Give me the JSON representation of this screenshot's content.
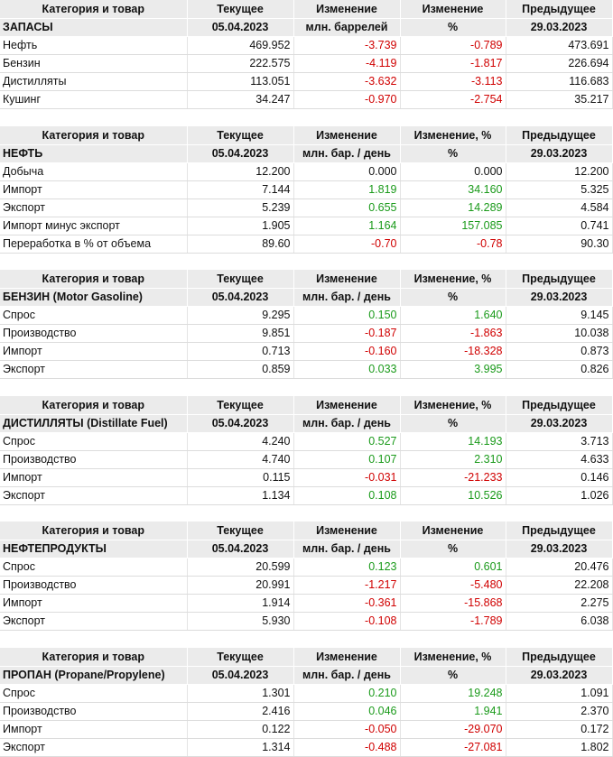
{
  "tables": [
    {
      "header": [
        "Категория и товар",
        "Текущее",
        "Изменение",
        "Изменение",
        "Предыдущее"
      ],
      "subheader": [
        "ЗАПАСЫ",
        "05.04.2023",
        "млн. баррелей",
        "%",
        "29.03.2023"
      ],
      "rows": [
        [
          "Нефть",
          "469.952",
          "-3.739",
          "-0.789",
          "473.691"
        ],
        [
          "Бензин",
          "222.575",
          "-4.119",
          "-1.817",
          "226.694"
        ],
        [
          "Дистилляты",
          "113.051",
          "-3.632",
          "-3.113",
          "116.683"
        ],
        [
          "Кушинг",
          "34.247",
          "-0.970",
          "-2.754",
          "35.217"
        ]
      ]
    },
    {
      "header": [
        "Категория и товар",
        "Текущее",
        "Изменение",
        "Изменение, %",
        "Предыдущее"
      ],
      "subheader": [
        "НЕФТЬ",
        "05.04.2023",
        "млн. бар. / день",
        "%",
        "29.03.2023"
      ],
      "rows": [
        [
          "Добыча",
          "12.200",
          "0.000",
          "0.000",
          "12.200"
        ],
        [
          "Импорт",
          "7.144",
          "1.819",
          "34.160",
          "5.325"
        ],
        [
          "Экспорт",
          "5.239",
          "0.655",
          "14.289",
          "4.584"
        ],
        [
          "Импорт минус экспорт",
          "1.905",
          "1.164",
          "157.085",
          "0.741"
        ],
        [
          "Переработка в % от объема",
          "89.60",
          "-0.70",
          "-0.78",
          "90.30"
        ]
      ]
    },
    {
      "header": [
        "Категория и товар",
        "Текущее",
        "Изменение",
        "Изменение, %",
        "Предыдущее"
      ],
      "subheader": [
        "БЕНЗИН (Motor Gasoline)",
        "05.04.2023",
        "млн. бар. / день",
        "%",
        "29.03.2023"
      ],
      "rows": [
        [
          "Спрос",
          "9.295",
          "0.150",
          "1.640",
          "9.145"
        ],
        [
          "Производство",
          "9.851",
          "-0.187",
          "-1.863",
          "10.038"
        ],
        [
          "Импорт",
          "0.713",
          "-0.160",
          "-18.328",
          "0.873"
        ],
        [
          "Экспорт",
          "0.859",
          "0.033",
          "3.995",
          "0.826"
        ]
      ]
    },
    {
      "header": [
        "Категория и товар",
        "Текущее",
        "Изменение",
        "Изменение, %",
        "Предыдущее"
      ],
      "subheader": [
        "ДИСТИЛЛЯТЫ (Distillate Fuel)",
        "05.04.2023",
        "млн. бар. / день",
        "%",
        "29.03.2023"
      ],
      "rows": [
        [
          "Спрос",
          "4.240",
          "0.527",
          "14.193",
          "3.713"
        ],
        [
          "Производство",
          "4.740",
          "0.107",
          "2.310",
          "4.633"
        ],
        [
          "Импорт",
          "0.115",
          "-0.031",
          "-21.233",
          "0.146"
        ],
        [
          "Экспорт",
          "1.134",
          "0.108",
          "10.526",
          "1.026"
        ]
      ]
    },
    {
      "header": [
        "Категория и товар",
        "Текущее",
        "Изменение",
        "Изменение",
        "Предыдущее"
      ],
      "subheader": [
        "НЕФТЕПРОДУКТЫ",
        "05.04.2023",
        "млн. бар. / день",
        "%",
        "29.03.2023"
      ],
      "rows": [
        [
          "Спрос",
          "20.599",
          "0.123",
          "0.601",
          "20.476"
        ],
        [
          "Производство",
          "20.991",
          "-1.217",
          "-5.480",
          "22.208"
        ],
        [
          "Импорт",
          "1.914",
          "-0.361",
          "-15.868",
          "2.275"
        ],
        [
          "Экспорт",
          "5.930",
          "-0.108",
          "-1.789",
          "6.038"
        ]
      ]
    },
    {
      "header": [
        "Категория и товар",
        "Текущее",
        "Изменение",
        "Изменение, %",
        "Предыдущее"
      ],
      "subheader": [
        "ПРОПАН (Propane/Propylene)",
        "05.04.2023",
        "млн. бар. / день",
        "%",
        "29.03.2023"
      ],
      "rows": [
        [
          "Спрос",
          "1.301",
          "0.210",
          "19.248",
          "1.091"
        ],
        [
          "Производство",
          "2.416",
          "0.046",
          "1.941",
          "2.370"
        ],
        [
          "Импорт",
          "0.122",
          "-0.050",
          "-29.070",
          "0.172"
        ],
        [
          "Экспорт",
          "1.314",
          "-0.488",
          "-27.081",
          "1.802"
        ]
      ]
    }
  ]
}
